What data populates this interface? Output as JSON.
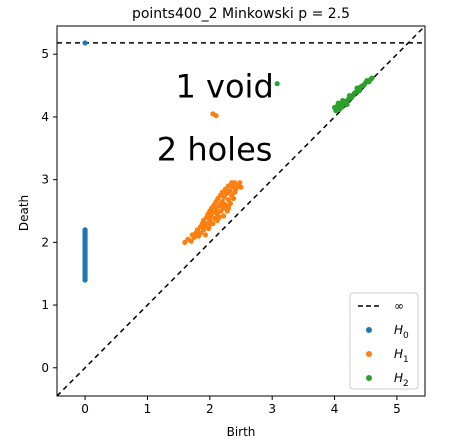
{
  "chart_data": {
    "type": "scatter",
    "title": "points400_2 Minkowski p = 2.5",
    "xlabel": "Birth",
    "ylabel": "Death",
    "xlim": [
      -0.45,
      5.45
    ],
    "ylim": [
      -0.45,
      5.45
    ],
    "xticks": [
      0,
      1,
      2,
      3,
      4,
      5
    ],
    "yticks": [
      0,
      1,
      2,
      3,
      4,
      5
    ],
    "grid": false,
    "legend_position": "bottom-right",
    "infinity_level": 5.18,
    "annotations": [
      {
        "text": "1 void",
        "x": 1.45,
        "y": 4.5
      },
      {
        "text": "2 holes",
        "x": 1.15,
        "y": 3.5
      }
    ],
    "legend": [
      {
        "label": "∞",
        "style": "dashed-line",
        "color": "#000000"
      },
      {
        "label": "H",
        "sub": "0",
        "style": "marker",
        "color": "#1f77b4"
      },
      {
        "label": "H",
        "sub": "1",
        "style": "marker",
        "color": "#ff7f0e"
      },
      {
        "label": "H",
        "sub": "2",
        "style": "marker",
        "color": "#2ca02c"
      }
    ],
    "series": [
      {
        "name": "H0",
        "color": "#1f77b4",
        "points": [
          [
            0,
            5.18
          ],
          [
            0,
            2.2
          ],
          [
            0,
            2.18
          ],
          [
            0,
            2.15
          ],
          [
            0,
            2.13
          ],
          [
            0,
            2.1
          ],
          [
            0,
            2.08
          ],
          [
            0,
            2.05
          ],
          [
            0,
            2.03
          ],
          [
            0,
            2.0
          ],
          [
            0,
            1.98
          ],
          [
            0,
            1.95
          ],
          [
            0,
            1.93
          ],
          [
            0,
            1.9
          ],
          [
            0,
            1.88
          ],
          [
            0,
            1.85
          ],
          [
            0,
            1.83
          ],
          [
            0,
            1.8
          ],
          [
            0,
            1.78
          ],
          [
            0,
            1.75
          ],
          [
            0,
            1.73
          ],
          [
            0,
            1.7
          ],
          [
            0,
            1.68
          ],
          [
            0,
            1.65
          ],
          [
            0,
            1.63
          ],
          [
            0,
            1.6
          ],
          [
            0,
            1.58
          ],
          [
            0,
            1.55
          ],
          [
            0,
            1.53
          ],
          [
            0,
            1.5
          ],
          [
            0,
            1.48
          ],
          [
            0,
            1.45
          ],
          [
            0,
            1.42
          ],
          [
            0,
            1.4
          ]
        ]
      },
      {
        "name": "H1",
        "color": "#ff7f0e",
        "points": [
          [
            2.05,
            4.05
          ],
          [
            2.1,
            4.02
          ],
          [
            1.6,
            2.0
          ],
          [
            1.65,
            2.05
          ],
          [
            1.7,
            2.02
          ],
          [
            1.72,
            2.12
          ],
          [
            1.75,
            2.08
          ],
          [
            1.78,
            2.15
          ],
          [
            1.8,
            2.2
          ],
          [
            1.82,
            2.1
          ],
          [
            1.85,
            2.25
          ],
          [
            1.85,
            2.15
          ],
          [
            1.88,
            2.3
          ],
          [
            1.9,
            2.2
          ],
          [
            1.9,
            2.35
          ],
          [
            1.92,
            2.27
          ],
          [
            1.95,
            2.4
          ],
          [
            1.95,
            2.3
          ],
          [
            1.97,
            2.45
          ],
          [
            1.98,
            2.22
          ],
          [
            2.0,
            2.5
          ],
          [
            2.0,
            2.35
          ],
          [
            2.02,
            2.42
          ],
          [
            2.03,
            2.55
          ],
          [
            2.05,
            2.3
          ],
          [
            2.05,
            2.48
          ],
          [
            2.07,
            2.6
          ],
          [
            2.08,
            2.38
          ],
          [
            2.1,
            2.52
          ],
          [
            2.1,
            2.65
          ],
          [
            2.12,
            2.45
          ],
          [
            2.13,
            2.7
          ],
          [
            2.15,
            2.58
          ],
          [
            2.15,
            2.4
          ],
          [
            2.17,
            2.75
          ],
          [
            2.18,
            2.5
          ],
          [
            2.2,
            2.65
          ],
          [
            2.2,
            2.8
          ],
          [
            2.22,
            2.55
          ],
          [
            2.23,
            2.72
          ],
          [
            2.25,
            2.85
          ],
          [
            2.25,
            2.6
          ],
          [
            2.27,
            2.78
          ],
          [
            2.28,
            2.5
          ],
          [
            2.3,
            2.9
          ],
          [
            2.3,
            2.68
          ],
          [
            2.32,
            2.82
          ],
          [
            2.33,
            2.62
          ],
          [
            2.35,
            2.95
          ],
          [
            2.35,
            2.75
          ],
          [
            2.37,
            2.88
          ],
          [
            2.38,
            2.7
          ],
          [
            2.4,
            2.8
          ],
          [
            2.4,
            2.95
          ],
          [
            2.42,
            2.85
          ],
          [
            2.45,
            2.9
          ],
          [
            2.48,
            2.95
          ],
          [
            2.5,
            2.88
          ],
          [
            2.12,
            2.35
          ],
          [
            2.0,
            2.28
          ],
          [
            1.93,
            2.12
          ],
          [
            2.22,
            2.42
          ],
          [
            2.27,
            2.55
          ],
          [
            2.18,
            2.62
          ],
          [
            2.08,
            2.55
          ],
          [
            2.3,
            2.55
          ]
        ]
      },
      {
        "name": "H2",
        "color": "#2ca02c",
        "points": [
          [
            3.08,
            4.53
          ],
          [
            4.0,
            4.15
          ],
          [
            4.02,
            4.1
          ],
          [
            4.05,
            4.18
          ],
          [
            4.08,
            4.12
          ],
          [
            4.1,
            4.2
          ],
          [
            4.12,
            4.16
          ],
          [
            4.15,
            4.22
          ],
          [
            4.18,
            4.25
          ],
          [
            4.2,
            4.2
          ],
          [
            4.22,
            4.28
          ],
          [
            4.25,
            4.3
          ],
          [
            4.28,
            4.32
          ],
          [
            4.3,
            4.35
          ],
          [
            4.32,
            4.38
          ],
          [
            4.35,
            4.4
          ],
          [
            4.38,
            4.45
          ],
          [
            4.4,
            4.42
          ],
          [
            4.42,
            4.48
          ],
          [
            4.45,
            4.5
          ],
          [
            4.48,
            4.52
          ],
          [
            4.5,
            4.55
          ],
          [
            4.52,
            4.58
          ],
          [
            4.55,
            4.56
          ],
          [
            4.58,
            4.6
          ],
          [
            4.6,
            4.62
          ],
          [
            4.06,
            4.22
          ],
          [
            4.13,
            4.26
          ],
          [
            4.24,
            4.34
          ],
          [
            4.36,
            4.46
          ]
        ]
      }
    ]
  }
}
